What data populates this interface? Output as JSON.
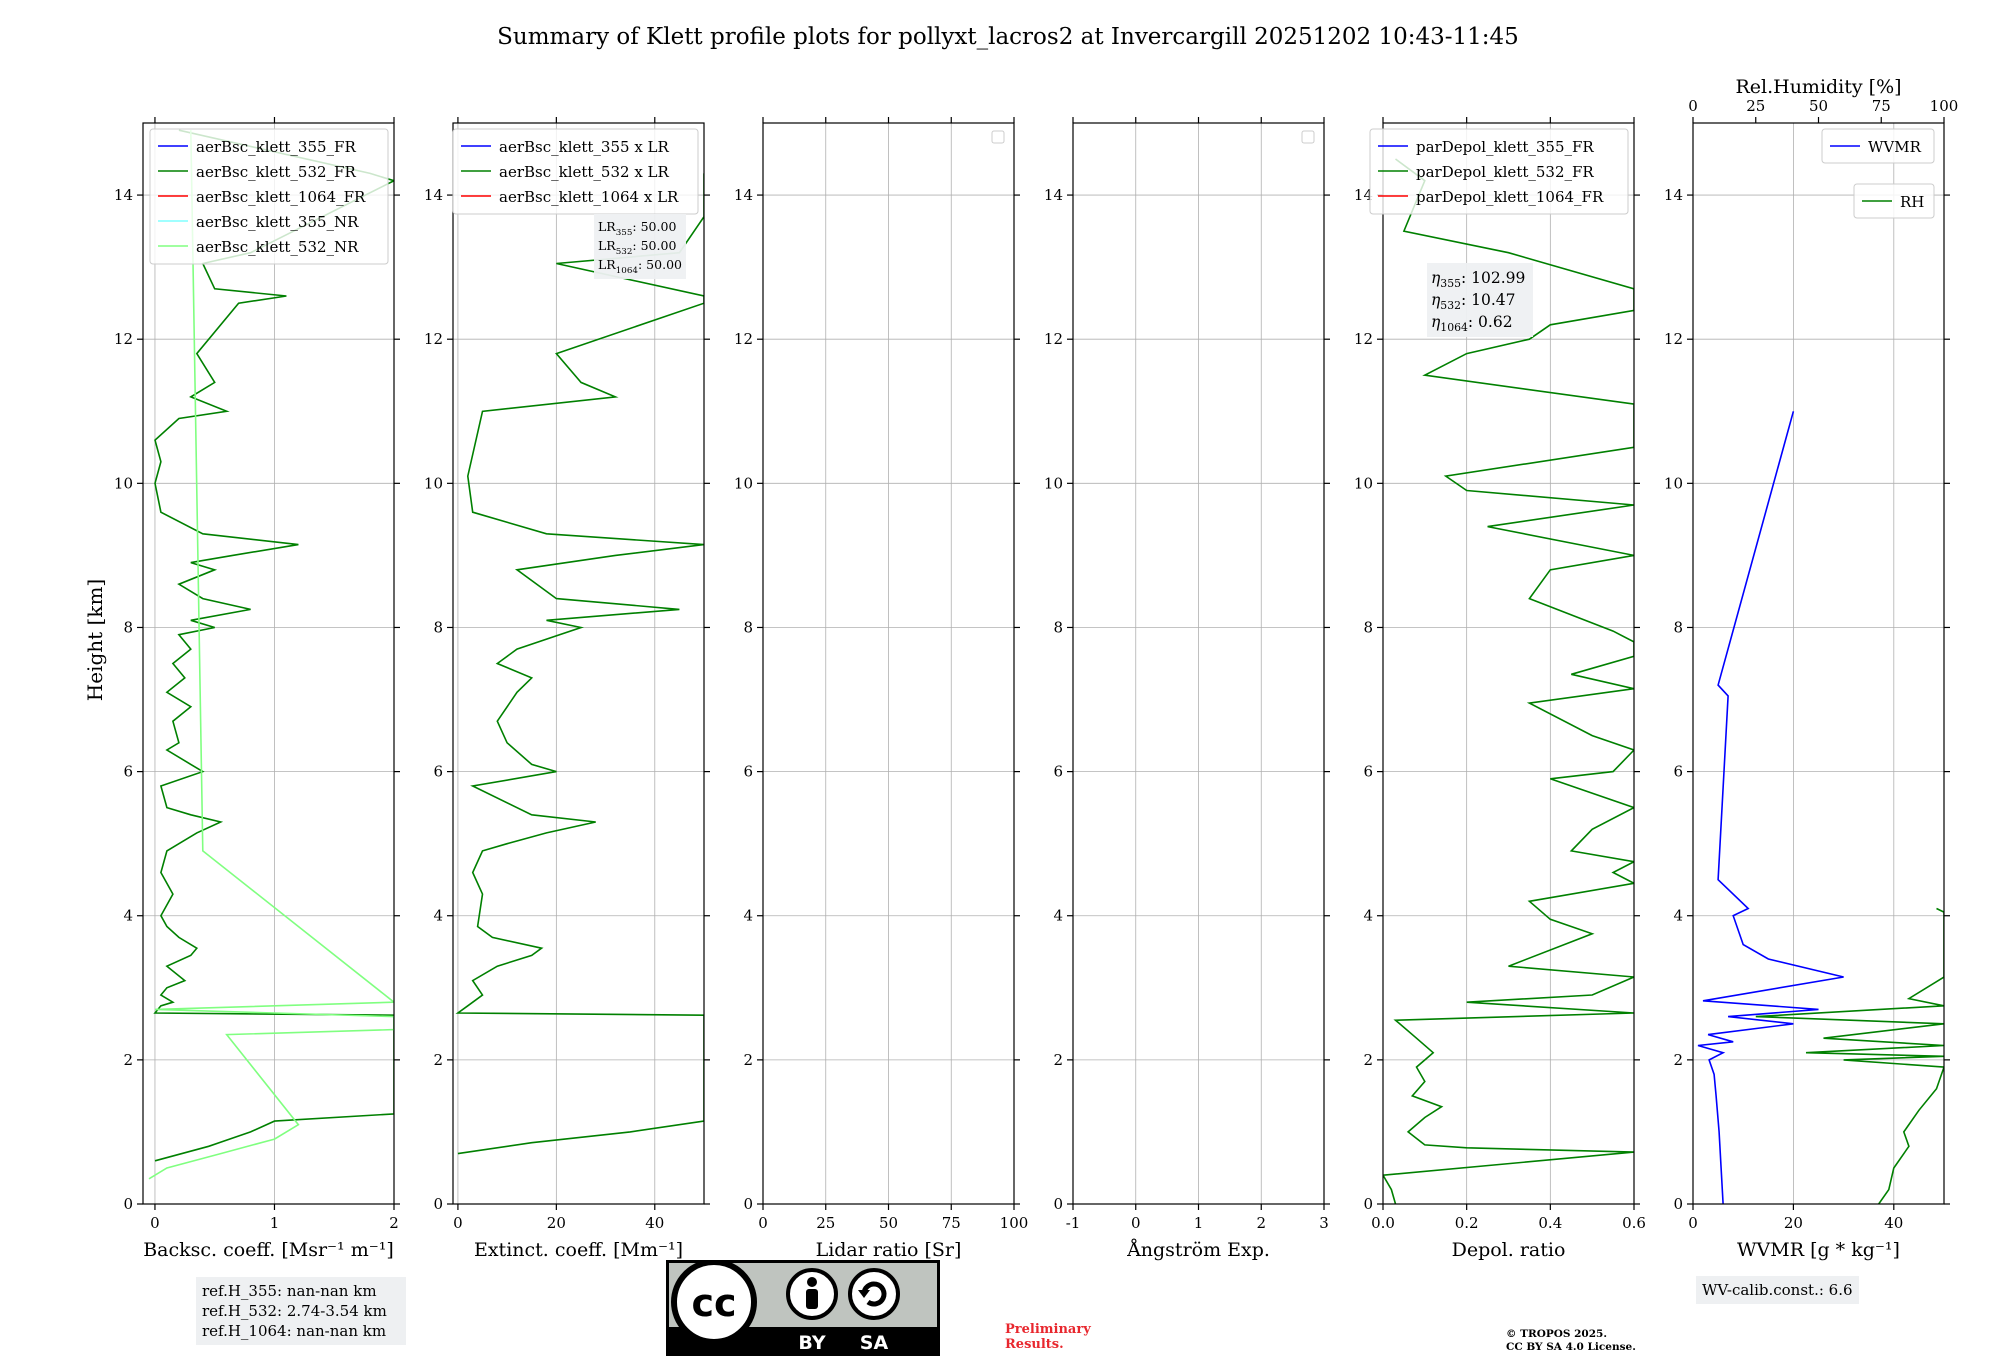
{
  "figure_title": "Summary of Klett profile plots for pollyxt_lacros2 at Invercargill 20251202 10:43-11:45",
  "shared_ylabel": "Height [km]",
  "chart_data": [
    {
      "type": "line",
      "id": "backscatter",
      "xlabel": "Backsc. coeff. [Msr⁻¹ m⁻¹]",
      "xlim": [
        -0.1,
        2
      ],
      "xticks": [
        0,
        1,
        2
      ],
      "ylim": [
        0,
        15
      ],
      "yticks": [
        0,
        2,
        4,
        6,
        8,
        10,
        12,
        14
      ],
      "grid": true,
      "legend_position": "top-right",
      "series": [
        {
          "name": "aerBsc_klett_355_FR",
          "color": "#0000ff",
          "y": [],
          "x": []
        },
        {
          "name": "aerBsc_klett_532_FR",
          "color": "#008000",
          "y": [
            0,
            0.6,
            0.8,
            1.0,
            1.15,
            1.25,
            2.62,
            2.65,
            2.75,
            2.8,
            2.9,
            3.0,
            3.1,
            3.3,
            3.45,
            3.55,
            3.7,
            3.85,
            4.0,
            4.3,
            4.6,
            4.9,
            5.0,
            5.15,
            5.3,
            5.4,
            5.5,
            5.8,
            6.0,
            6.1,
            6.3,
            6.4,
            6.7,
            6.9,
            7.1,
            7.3,
            7.5,
            7.7,
            7.9,
            8.0,
            8.1,
            8.25,
            8.4,
            8.6,
            8.8,
            8.9,
            9.0,
            9.15,
            9.3,
            9.6,
            10.0,
            10.3,
            10.6,
            10.9,
            11.0,
            11.2,
            11.4,
            11.8,
            12.5,
            12.6,
            12.7,
            13.05,
            13.2,
            14.2,
            14.3,
            14.9
          ],
          "x": [
            null,
            0.0,
            0.45,
            0.8,
            1.0,
            2.0,
            2.0,
            0.0,
            0.05,
            0.15,
            0.05,
            0.1,
            0.25,
            0.1,
            0.3,
            0.35,
            0.2,
            0.1,
            0.05,
            0.15,
            0.05,
            0.1,
            0.2,
            0.35,
            0.55,
            0.3,
            0.1,
            0.05,
            0.4,
            0.3,
            0.1,
            0.2,
            0.15,
            0.3,
            0.1,
            0.25,
            0.15,
            0.3,
            0.2,
            0.5,
            0.3,
            0.8,
            0.4,
            0.2,
            0.5,
            0.3,
            0.65,
            1.2,
            0.4,
            0.05,
            0.0,
            0.05,
            0.0,
            0.2,
            0.6,
            0.3,
            0.5,
            0.35,
            0.7,
            1.1,
            0.5,
            0.4,
            0.8,
            2.0,
            1.8,
            0.2
          ]
        },
        {
          "name": "aerBsc_klett_1064_FR",
          "color": "#ff0000",
          "y": [],
          "x": []
        },
        {
          "name": "aerBsc_klett_355_NR",
          "color": "#80ffff",
          "y": [],
          "x": []
        },
        {
          "name": "aerBsc_klett_532_NR",
          "color": "#80ff80",
          "y": [
            0.35,
            0.5,
            0.7,
            0.9,
            1.1,
            2.35,
            2.42,
            2.6,
            2.7,
            2.8,
            4.9,
            14.9
          ],
          "x": [
            -0.05,
            0.1,
            0.55,
            1.0,
            1.2,
            0.6,
            2.0,
            2.0,
            0.0,
            2.0,
            0.4,
            0.3
          ]
        }
      ]
    },
    {
      "type": "line",
      "id": "extinction",
      "xlabel": "Extinct. coeff. [Mm⁻¹]",
      "xlim": [
        -1,
        50
      ],
      "xticks": [
        0,
        20,
        40
      ],
      "ylim": [
        0,
        15
      ],
      "yticks": [
        0,
        2,
        4,
        6,
        8,
        10,
        12,
        14
      ],
      "grid": true,
      "legend_position": "top-right",
      "series": [
        {
          "name": "aerBsc_klett_355 x LR",
          "color": "#0000ff",
          "y": [],
          "x": []
        },
        {
          "name": "aerBsc_klett_532 x LR",
          "color": "#008000",
          "y": [
            0.7,
            0.85,
            1.0,
            1.15,
            2.62,
            2.65,
            2.75,
            2.9,
            3.1,
            3.3,
            3.45,
            3.55,
            3.7,
            3.85,
            4.3,
            4.6,
            4.9,
            5.0,
            5.15,
            5.3,
            5.4,
            5.8,
            6.0,
            6.1,
            6.4,
            6.7,
            7.1,
            7.3,
            7.5,
            7.7,
            8.0,
            8.1,
            8.25,
            8.4,
            8.8,
            9.0,
            9.15,
            9.3,
            9.6,
            10.1,
            11.0,
            11.2,
            11.4,
            11.8,
            12.5,
            12.6,
            13.05,
            13.2,
            13.7,
            14.3
          ],
          "x": [
            0,
            15,
            35,
            50,
            50,
            0,
            2,
            5,
            3,
            8,
            15,
            17,
            7,
            4,
            5,
            3,
            5,
            10,
            18,
            28,
            15,
            3,
            20,
            15,
            10,
            8,
            12,
            15,
            8,
            12,
            25,
            18,
            45,
            20,
            12,
            32,
            50,
            18,
            3,
            2,
            5,
            32,
            25,
            20,
            50,
            50,
            20,
            45,
            50,
            50
          ]
        },
        {
          "name": "aerBsc_klett_1064 x LR",
          "color": "#ff0000",
          "y": [],
          "x": []
        }
      ],
      "annotations": [
        {
          "label": "LR",
          "sub": "355",
          "text": ": 50.00"
        },
        {
          "label": "LR",
          "sub": "532",
          "text": ": 50.00"
        },
        {
          "label": "LR",
          "sub": "1064",
          "text": ": 50.00"
        }
      ]
    },
    {
      "type": "line",
      "id": "lidar_ratio",
      "xlabel": "Lidar ratio [Sr]",
      "xlim": [
        0,
        100
      ],
      "xticks": [
        0,
        25,
        50,
        75,
        100
      ],
      "ylim": [
        0,
        15
      ],
      "yticks": [
        0,
        2,
        4,
        6,
        8,
        10,
        12,
        14
      ],
      "grid": true,
      "legend_position": "top-right",
      "series": []
    },
    {
      "type": "line",
      "id": "angstrom",
      "xlabel": "Ångström Exp.",
      "xlim": [
        -1,
        3
      ],
      "xticks": [
        -1,
        0,
        1,
        2,
        3
      ],
      "ylim": [
        0,
        15
      ],
      "yticks": [
        0,
        2,
        4,
        6,
        8,
        10,
        12,
        14
      ],
      "grid": true,
      "legend_position": "top-right",
      "series": []
    },
    {
      "type": "line",
      "id": "depol",
      "xlabel": "Depol. ratio",
      "xlim": [
        0,
        0.6
      ],
      "xticks": [
        0.0,
        0.2,
        0.4,
        0.6
      ],
      "xtick_labels": [
        "0.0",
        "0.2",
        "0.4",
        "0.6"
      ],
      "ylim": [
        0,
        15
      ],
      "yticks": [
        0,
        2,
        4,
        6,
        8,
        10,
        12,
        14
      ],
      "grid": true,
      "legend_position": "top-right",
      "series": [
        {
          "name": "parDepol_klett_355_FR",
          "color": "#0000ff",
          "y": [],
          "x": []
        },
        {
          "name": "parDepol_klett_532_FR",
          "color": "#008000",
          "y": [
            0,
            0.2,
            0.4,
            0.72,
            0.78,
            0.82,
            1.0,
            1.2,
            1.35,
            1.5,
            1.7,
            1.9,
            2.1,
            2.3,
            2.55,
            2.65,
            2.8,
            2.9,
            3.15,
            3.3,
            3.75,
            3.95,
            4.2,
            4.45,
            4.6,
            4.75,
            4.9,
            5.2,
            5.5,
            5.9,
            6.0,
            6.3,
            6.5,
            6.95,
            7.15,
            7.35,
            7.6,
            7.8,
            7.95,
            8.4,
            8.8,
            9.0,
            9.4,
            9.7,
            9.9,
            10.1,
            10.5,
            10.7,
            10.9,
            11.1,
            11.5,
            11.8,
            12.0,
            12.2,
            12.4,
            12.6,
            12.7,
            13.2,
            13.5,
            14.2,
            14.5
          ],
          "x": [
            0.03,
            0.02,
            0.0,
            0.6,
            0.2,
            0.1,
            0.06,
            0.1,
            0.14,
            0.07,
            0.1,
            0.08,
            0.12,
            0.08,
            0.03,
            0.6,
            0.2,
            0.5,
            0.6,
            0.3,
            0.5,
            0.4,
            0.35,
            0.6,
            0.55,
            0.6,
            0.45,
            0.5,
            0.6,
            0.4,
            0.55,
            0.6,
            0.5,
            0.35,
            0.6,
            0.45,
            0.6,
            0.6,
            0.55,
            0.35,
            0.4,
            0.6,
            0.25,
            0.6,
            0.2,
            0.15,
            0.6,
            0.6,
            0.6,
            0.6,
            0.1,
            0.2,
            0.35,
            0.4,
            0.6,
            0.6,
            0.6,
            0.3,
            0.05,
            0.1,
            0.03
          ]
        },
        {
          "name": "parDepol_klett_1064_FR",
          "color": "#ff0000",
          "y": [],
          "x": []
        }
      ],
      "annotations": [
        {
          "label": "η",
          "sub": "355",
          "text": ": 102.99"
        },
        {
          "label": "η",
          "sub": "532",
          "text": ": 10.47"
        },
        {
          "label": "η",
          "sub": "1064",
          "text": ": 0.62"
        }
      ]
    },
    {
      "type": "line",
      "id": "wvmr_rh",
      "xlabel": "WVMR [g * kg⁻¹]",
      "xlim": [
        0,
        50
      ],
      "xticks": [
        0,
        20,
        40
      ],
      "x2label": "Rel.Humidity [%]",
      "x2lim": [
        0,
        100
      ],
      "x2ticks": [
        0,
        25,
        50,
        75,
        100
      ],
      "ylim": [
        0,
        15
      ],
      "yticks": [
        0,
        2,
        4,
        6,
        8,
        10,
        12,
        14
      ],
      "grid": true,
      "legend_position": "top-right",
      "series": [
        {
          "name": "WVMR",
          "color": "#0000ff",
          "y": [
            0,
            0.5,
            1.0,
            1.5,
            1.8,
            2.0,
            2.1,
            2.2,
            2.25,
            2.35,
            2.5,
            2.6,
            2.7,
            2.82,
            3.15,
            3.4,
            3.6,
            4.0,
            4.1,
            4.5,
            7.05,
            7.2,
            11.0
          ],
          "x": [
            6.0,
            5.6,
            5.2,
            4.6,
            4.2,
            3.2,
            6.0,
            1.0,
            8.0,
            3.0,
            20.0,
            7.0,
            25.0,
            2.0,
            30.0,
            15.0,
            10.0,
            8.0,
            11.0,
            5.0,
            7.0,
            5.0,
            20.0
          ]
        },
        {
          "name": "RH",
          "color": "#008000",
          "y": [
            0,
            0.2,
            0.5,
            0.8,
            1.0,
            1.3,
            1.6,
            1.9,
            2.0,
            2.05,
            2.1,
            2.2,
            2.3,
            2.5,
            2.6,
            2.75,
            2.85,
            3.15,
            4.05,
            4.1
          ],
          "x": [
            74,
            78,
            80,
            86,
            84,
            90,
            97,
            100,
            60,
            100,
            45,
            100,
            52,
            100,
            25,
            100,
            86,
            100,
            100,
            97
          ]
        }
      ],
      "annotations": [
        {
          "label": "WV-calib.const.",
          "sub": "",
          "text": ": 6.6"
        }
      ]
    }
  ],
  "refH": [
    "ref.H_355: nan-nan km",
    "ref.H_532: 2.74-3.54 km",
    "ref.H_1064: nan-nan km"
  ],
  "wv_calib": "WV-calib.const.: 6.6",
  "license_badge": {
    "cc": "cc",
    "by": "BY",
    "sa": "SA"
  },
  "preliminary": [
    "Preliminary",
    "Results."
  ],
  "tropos": [
    "© TROPOS 2025.",
    "CC BY SA 4.0 License."
  ]
}
